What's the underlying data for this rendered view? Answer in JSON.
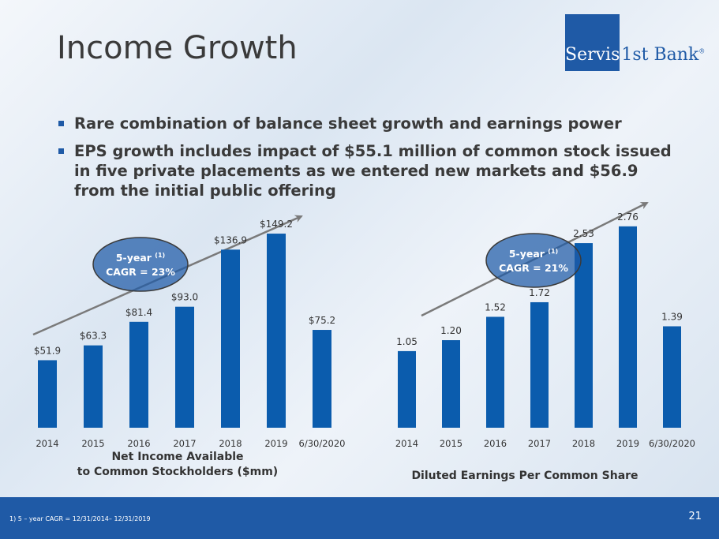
{
  "slide": {
    "title": "Income Growth",
    "bullets": [
      "Rare combination of balance sheet growth and earnings power",
      "EPS growth includes impact of $55.1 million of common stock issued in five private placements as we entered new markets and $56.9 from the initial public offering"
    ],
    "page_number": "21",
    "footnote": "1)      5 – year CAGR = 12/31/2014– 12/31/2019"
  },
  "logo": {
    "boxed_text": "Servis",
    "rest_text": "1st Bank",
    "mark": "®",
    "color": "#1f5aa6"
  },
  "colors": {
    "bar": "#0b5cad",
    "footer": "#1f5aa6",
    "arrow": "#7a7a7a",
    "ellipse_fill": "#1f5aa6",
    "ellipse_stroke": "#3a3a3a"
  },
  "chart_data": [
    {
      "type": "bar",
      "categories": [
        "2014",
        "2015",
        "2016",
        "2017",
        "2018",
        "2019",
        "6/30/2020"
      ],
      "values": [
        51.9,
        63.3,
        81.4,
        93.0,
        136.9,
        149.2,
        75.2
      ],
      "data_labels": [
        "$51.9",
        "$63.3",
        "$81.4",
        "$93.0",
        "$136.9",
        "$149.2",
        "$75.2"
      ],
      "title_lines": [
        "Net Income Available",
        "to Common Stockholders ($mm)"
      ],
      "callout": {
        "line1": "5-year",
        "sup": "(1)",
        "line2": "CAGR = 23%"
      },
      "ylim": [
        0,
        165
      ],
      "grid": false,
      "legend": "none"
    },
    {
      "type": "bar",
      "categories": [
        "2014",
        "2015",
        "2016",
        "2017",
        "2018",
        "2019",
        "6/30/2020"
      ],
      "values": [
        1.05,
        1.2,
        1.52,
        1.72,
        2.53,
        2.76,
        1.39
      ],
      "data_labels": [
        "1.05",
        "1.20",
        "1.52",
        "1.72",
        "2.53",
        "2.76",
        "1.39"
      ],
      "title_lines": [
        "Diluted Earnings Per Common Share"
      ],
      "callout": {
        "line1": "5-year",
        "sup": "(1)",
        "line2": "CAGR = 21%"
      },
      "ylim": [
        0,
        3.05
      ],
      "grid": false,
      "legend": "none"
    }
  ]
}
